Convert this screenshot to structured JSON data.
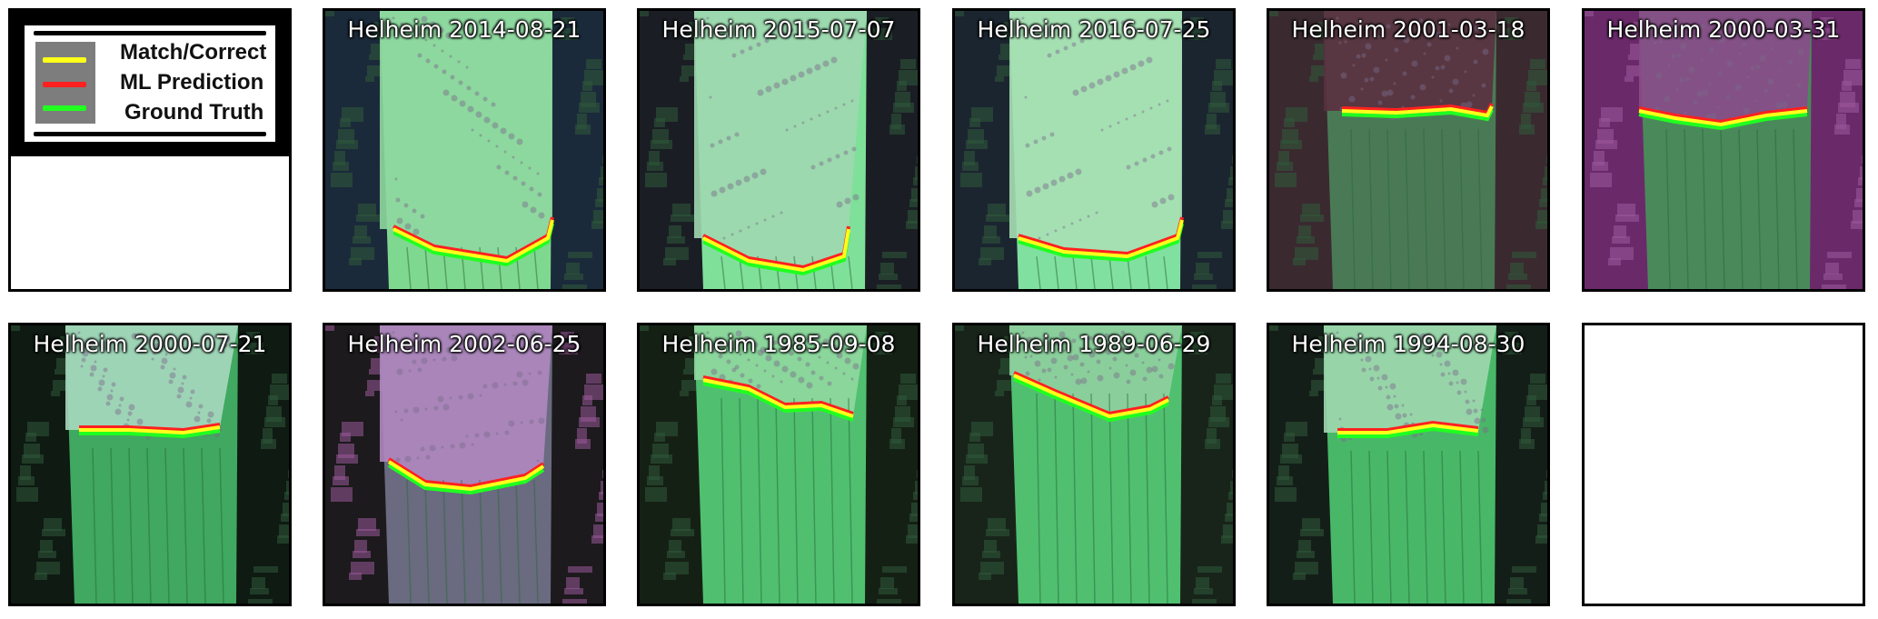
{
  "legend": {
    "items": [
      {
        "label": "Match/Correct",
        "color": "#ffff1a"
      },
      {
        "label": "ML Prediction",
        "color": "#ff2020"
      },
      {
        "label": "Ground Truth",
        "color": "#20ff20"
      }
    ]
  },
  "panels": [
    {
      "title": "Helheim 2014-08-21"
    },
    {
      "title": "Helheim 2015-07-07"
    },
    {
      "title": "Helheim 2016-07-25"
    },
    {
      "title": "Helheim 2001-03-18"
    },
    {
      "title": "Helheim 2000-03-31"
    },
    {
      "title": "Helheim 2000-07-21"
    },
    {
      "title": "Helheim 2002-06-25"
    },
    {
      "title": "Helheim 1985-09-08"
    },
    {
      "title": "Helheim 1989-06-29"
    },
    {
      "title": "Helheim 1994-08-30"
    }
  ]
}
